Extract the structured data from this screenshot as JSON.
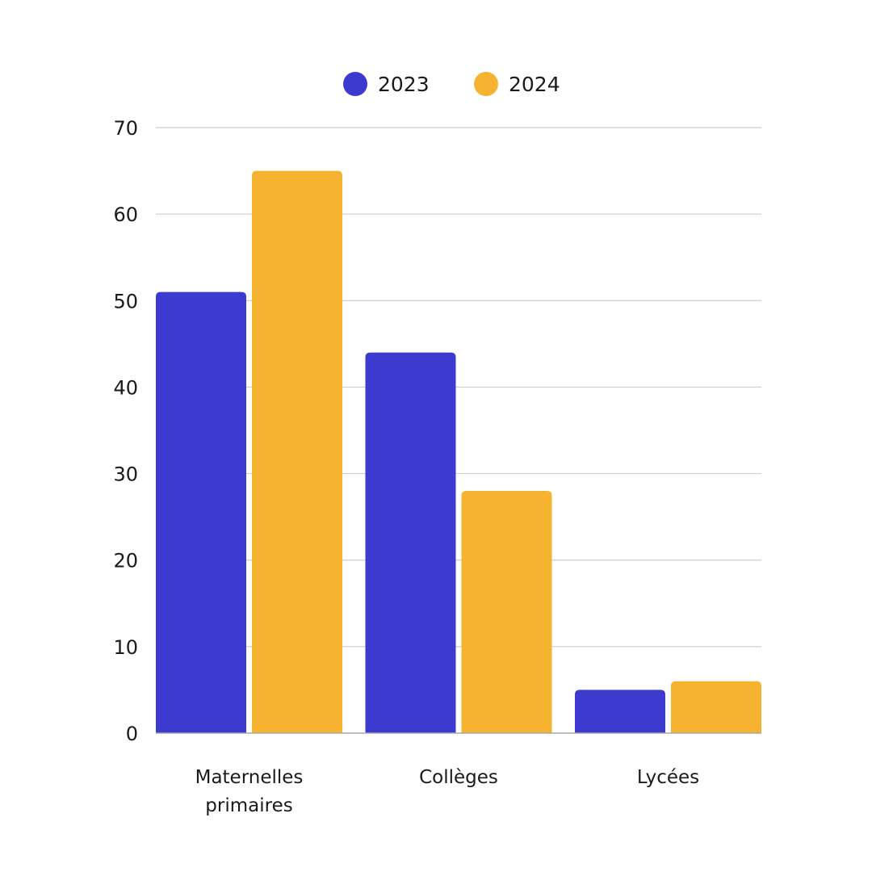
{
  "chart_data": {
    "type": "bar",
    "categories": [
      [
        "Maternelles",
        "primaires"
      ],
      [
        "Collèges"
      ],
      [
        "Lycées"
      ]
    ],
    "series": [
      {
        "name": "2023",
        "color": "#3D3BCF",
        "values": [
          51,
          44,
          5
        ]
      },
      {
        "name": "2024",
        "color": "#F6B32F",
        "values": [
          65,
          28,
          6
        ]
      }
    ],
    "ylim": [
      0,
      70
    ],
    "yticks": [
      0,
      10,
      20,
      30,
      40,
      50,
      60,
      70
    ],
    "grid": true,
    "legend_position": "top-center",
    "title": "",
    "xlabel": "",
    "ylabel": ""
  }
}
